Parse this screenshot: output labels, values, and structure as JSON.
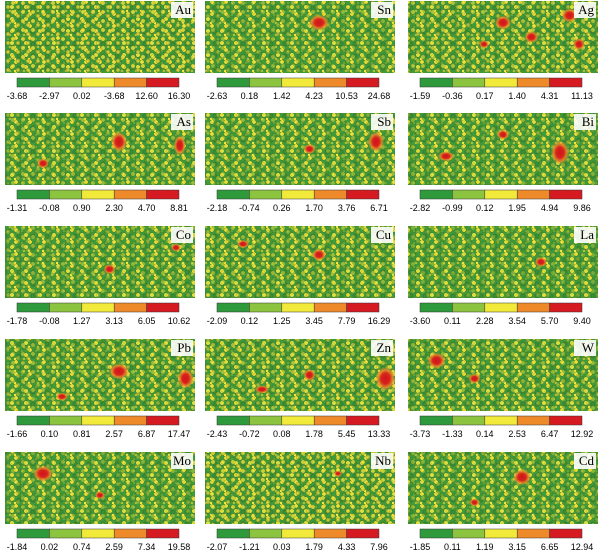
{
  "panels": [
    {
      "element": "Au",
      "scale": [
        "-3.68",
        "-2.97",
        "0.02",
        "-3.68",
        "12.60",
        "16.30"
      ]
    },
    {
      "element": "Sn",
      "scale": [
        "-2.63",
        "0.18",
        "1.42",
        "4.23",
        "10.53",
        "24.68"
      ]
    },
    {
      "element": "Ag",
      "scale": [
        "-1.59",
        "-0.36",
        "0.17",
        "1.40",
        "4.31",
        "11.13"
      ]
    },
    {
      "element": "As",
      "scale": [
        "-1.31",
        "-0.08",
        "0.90",
        "2.30",
        "4.70",
        "8.81"
      ]
    },
    {
      "element": "Sb",
      "scale": [
        "-2.18",
        "-0.74",
        "0.26",
        "1.70",
        "3.76",
        "6.71"
      ]
    },
    {
      "element": "Bi",
      "scale": [
        "-2.82",
        "-0.99",
        "0.12",
        "1.95",
        "4.94",
        "9.86"
      ]
    },
    {
      "element": "Co",
      "scale": [
        "-1.78",
        "-0.08",
        "1.27",
        "3.13",
        "6.05",
        "10.62"
      ]
    },
    {
      "element": "Cu",
      "scale": [
        "-2.09",
        "0.12",
        "1.25",
        "3.45",
        "7.79",
        "16.29"
      ]
    },
    {
      "element": "La",
      "scale": [
        "-3.60",
        "0.11",
        "2.28",
        "3.54",
        "5.70",
        "9.40"
      ]
    },
    {
      "element": "Pb",
      "scale": [
        "-1.66",
        "0.10",
        "0.81",
        "2.57",
        "6.87",
        "17.47"
      ]
    },
    {
      "element": "Zn",
      "scale": [
        "-2.43",
        "-0.72",
        "0.08",
        "1.78",
        "5.45",
        "13.33"
      ]
    },
    {
      "element": "W",
      "scale": [
        "-3.73",
        "-1.33",
        "0.14",
        "2.53",
        "6.47",
        "12.92"
      ]
    },
    {
      "element": "Mo",
      "scale": [
        "-1.84",
        "0.02",
        "0.74",
        "2.59",
        "7.34",
        "19.58"
      ]
    },
    {
      "element": "Nb",
      "scale": [
        "-2.07",
        "-1.21",
        "0.03",
        "1.79",
        "4.33",
        "7.96"
      ]
    },
    {
      "element": "Cd",
      "scale": [
        "-1.85",
        "0.11",
        "1.19",
        "3.15",
        "6.65",
        "12.94"
      ]
    }
  ]
}
